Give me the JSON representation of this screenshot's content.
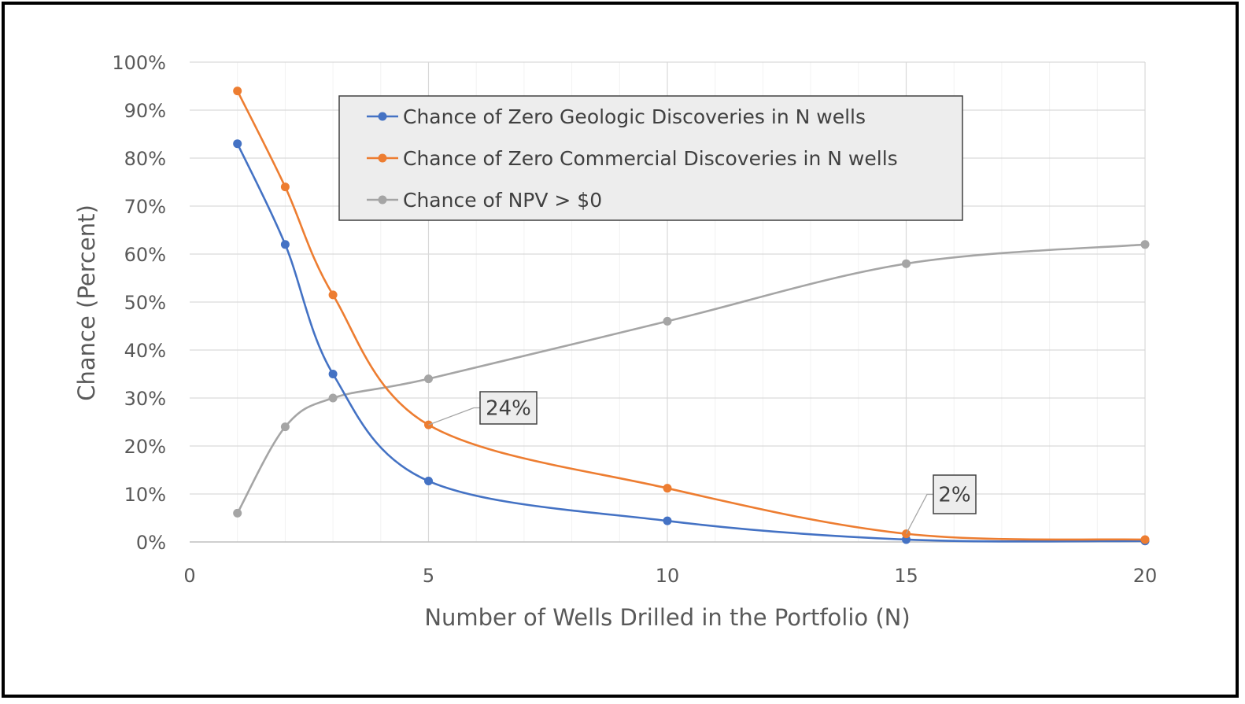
{
  "chart_data": {
    "type": "line",
    "xlabel": "Number of Wells Drilled in the Portfolio (N)",
    "ylabel": "Chance  (Percent)",
    "xlim": [
      0,
      20
    ],
    "ylim": [
      0,
      100
    ],
    "x_ticks": [
      "0",
      "5",
      "10",
      "15",
      "20"
    ],
    "x_tick_values": [
      0,
      5,
      10,
      15,
      20
    ],
    "y_ticks": [
      "0%",
      "10%",
      "20%",
      "30%",
      "40%",
      "50%",
      "60%",
      "70%",
      "80%",
      "90%",
      "100%"
    ],
    "y_tick_values": [
      0,
      10,
      20,
      30,
      40,
      50,
      60,
      70,
      80,
      90,
      100
    ],
    "x_minor_step": 1,
    "grid": true,
    "legend_position": "top-center",
    "series": [
      {
        "name": "Chance of Zero Geologic Discoveries in N wells",
        "color": "#4472C4",
        "x": [
          1,
          2,
          3,
          5,
          10,
          15,
          20
        ],
        "y": [
          83,
          62,
          35,
          12.7,
          4.4,
          0.5,
          0.2
        ]
      },
      {
        "name": "Chance of Zero Commercial Discoveries in N wells",
        "color": "#ED7D31",
        "x": [
          1,
          2,
          3,
          5,
          10,
          15,
          20
        ],
        "y": [
          94,
          74,
          51.5,
          24.4,
          11.2,
          1.7,
          0.5
        ]
      },
      {
        "name": "Chance of NPV > $0",
        "color": "#A5A5A5",
        "x": [
          1,
          2,
          3,
          5,
          10,
          15,
          20
        ],
        "y": [
          6,
          24,
          30,
          34,
          46,
          58,
          62
        ]
      }
    ],
    "annotations": [
      {
        "text": "24%",
        "series": 1,
        "x": 5,
        "y": 24.4
      },
      {
        "text": "2%",
        "series": 1,
        "x": 15,
        "y": 1.7
      }
    ]
  }
}
